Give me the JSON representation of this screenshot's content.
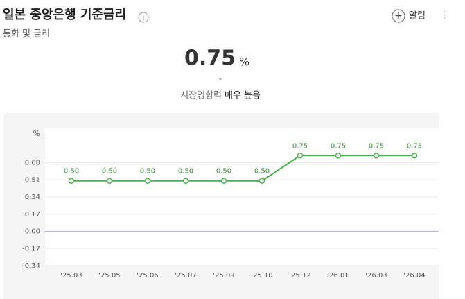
{
  "header": {
    "title": "일본 중앙은행 기준금리",
    "subtitle": "통화 및 금리",
    "alarm": "알림"
  },
  "summary": {
    "value": "0.75",
    "unit": "%",
    "change": "-",
    "impact_label": "시장영향력",
    "impact": "매우 높음"
  },
  "chart_data": {
    "type": "line",
    "y_unit": "%",
    "categories": [
      "'25.03",
      "'25.05",
      "'25.06",
      "'25.07",
      "'25.09",
      "'25.10",
      "'25.12",
      "'26.01",
      "'26.03",
      "'26.04"
    ],
    "values": [
      0.5,
      0.5,
      0.5,
      0.5,
      0.5,
      0.5,
      0.75,
      0.75,
      0.75,
      0.75
    ],
    "value_labels": [
      "0.50",
      "0.50",
      "0.50",
      "0.50",
      "0.50",
      "0.50",
      "0.75",
      "0.75",
      "0.75",
      "0.75"
    ],
    "color": "#4caf50",
    "ylim": [
      -0.34,
      1.02
    ],
    "yticks": [
      -0.34,
      -0.17,
      {
        "value": 0,
        "label": "0.00"
      },
      0.17,
      0.34,
      0.51,
      0.68
    ],
    "grid": true
  }
}
